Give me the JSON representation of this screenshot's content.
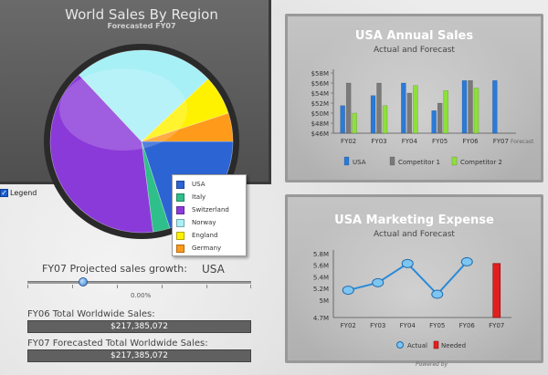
{
  "pie": {
    "title": "World Sales By Region",
    "subtitle": "Forecasted FY07",
    "legend_toggle_label": "Legend",
    "legend": [
      {
        "label": "USA",
        "color": "#2c64d4"
      },
      {
        "label": "Italy",
        "color": "#2fbf8a"
      },
      {
        "label": "Switzerland",
        "color": "#8a3ad8"
      },
      {
        "label": "Norway",
        "color": "#a7f0f6"
      },
      {
        "label": "England",
        "color": "#fff200"
      },
      {
        "label": "Germany",
        "color": "#ff9a1a"
      }
    ]
  },
  "controls": {
    "growth_label": "FY07 Projected sales growth:",
    "growth_country": "USA",
    "growth_value": "0.00%",
    "fy06_label": "FY06 Total Worldwide Sales:",
    "fy06_value": "$217,385,072",
    "fy07_label": "FY07 Forecasted Total Worldwide Sales:",
    "fy07_value": "$217,385,072"
  },
  "annual": {
    "title": "USA Annual Sales",
    "subtitle": "Actual and Forecast"
  },
  "expense": {
    "title": "USA Marketing Expense",
    "subtitle": "Actual and Forecast"
  },
  "footer": {
    "powered_by": "Powered by"
  },
  "chart_data": [
    {
      "type": "pie",
      "title": "World Sales By Region",
      "subtitle": "Forecasted FY07",
      "categories": [
        "USA",
        "Italy",
        "Switzerland",
        "Norway",
        "England",
        "Germany"
      ],
      "values": [
        20,
        3,
        40,
        25,
        7,
        5
      ]
    },
    {
      "type": "bar",
      "title": "USA Annual Sales",
      "subtitle": "Actual and Forecast",
      "categories": [
        "FY02",
        "FY03",
        "FY04",
        "FY05",
        "FY06",
        "FY07"
      ],
      "ylim": [
        46,
        58
      ],
      "yticks": [
        "$46M",
        "$48M",
        "$50M",
        "$52M",
        "$54M",
        "$56M",
        "$58M"
      ],
      "xlabel_note": "Forecast",
      "series": [
        {
          "name": "USA",
          "color": "#2a7ad8",
          "values": [
            51.5,
            53.5,
            56,
            50.5,
            56.5,
            56.5
          ]
        },
        {
          "name": "Competitor 1",
          "color": "#7a7a7a",
          "values": [
            56,
            56,
            54,
            52,
            56.5,
            null
          ]
        },
        {
          "name": "Competitor 2",
          "color": "#8de03a",
          "values": [
            50,
            51.5,
            55.5,
            54.5,
            55,
            null
          ]
        }
      ]
    },
    {
      "type": "line",
      "title": "USA Marketing Expense",
      "subtitle": "Actual and Forecast",
      "categories": [
        "FY02",
        "FY03",
        "FY04",
        "FY05",
        "FY06",
        "FY07"
      ],
      "ylim": [
        4.7,
        5.8
      ],
      "yticks": [
        "4.7M",
        "5M",
        "5.2M",
        "5.4M",
        "5.6M",
        "5.8M"
      ],
      "series": [
        {
          "name": "Actual",
          "color": "#2a8ad8",
          "values": [
            5.17,
            5.3,
            5.63,
            5.1,
            5.66,
            null
          ]
        },
        {
          "name": "Needed",
          "color": "#e02020",
          "values": [
            null,
            null,
            null,
            null,
            null,
            5.63
          ]
        }
      ]
    }
  ]
}
